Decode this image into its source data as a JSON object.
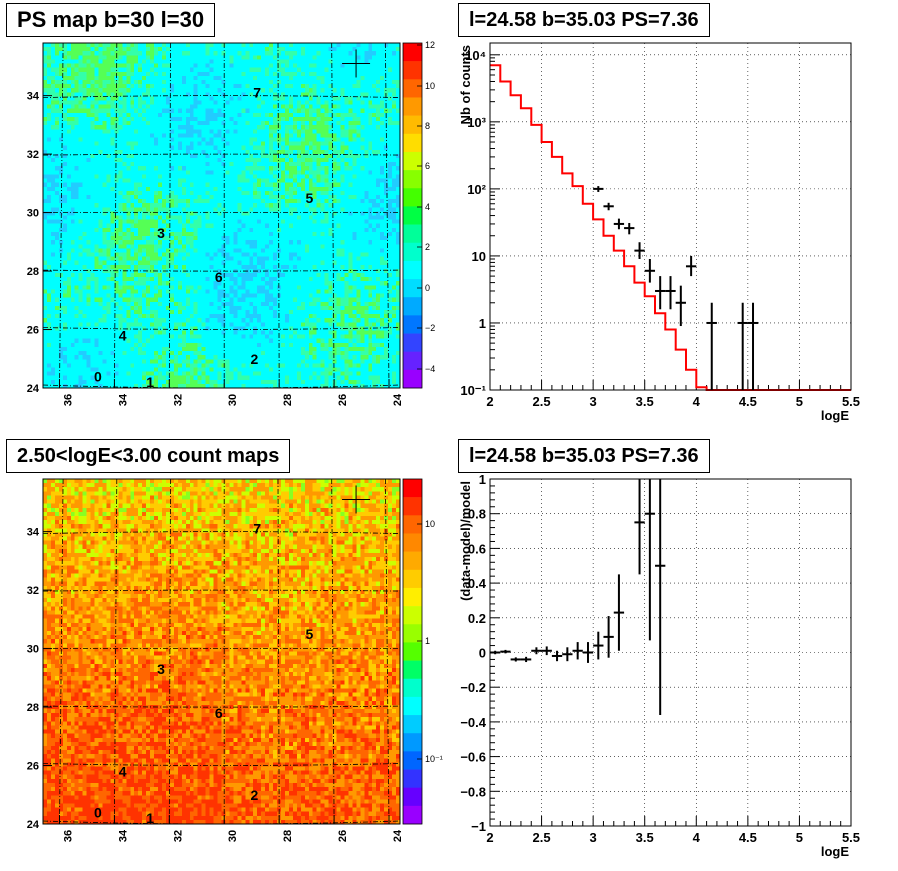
{
  "chart_data": [
    {
      "type": "heatmap",
      "title": "PS map b=30 l=30",
      "xlabel": "",
      "ylabel": "",
      "x_ticks": [
        "36",
        "34",
        "32",
        "30",
        "28",
        "26",
        "24"
      ],
      "y_ticks": [
        "24",
        "26",
        "28",
        "30",
        "32",
        "34"
      ],
      "xlim": [
        36.6,
        23.6
      ],
      "ylim": [
        24,
        35.8
      ],
      "colorbar": {
        "min": -5,
        "max": 12,
        "ticks": [
          "12",
          "10",
          "8",
          "6",
          "4",
          "2",
          "0",
          "−2",
          "−4"
        ]
      },
      "sources": [
        {
          "label": "0",
          "x": 34.6,
          "y": 24.4
        },
        {
          "label": "1",
          "x": 32.7,
          "y": 24.2
        },
        {
          "label": "2",
          "x": 28.9,
          "y": 25.0
        },
        {
          "label": "3",
          "x": 32.3,
          "y": 29.3
        },
        {
          "label": "4",
          "x": 33.7,
          "y": 25.8
        },
        {
          "label": "5",
          "x": 26.9,
          "y": 30.5
        },
        {
          "label": "6",
          "x": 30.2,
          "y": 27.8
        },
        {
          "label": "7",
          "x": 28.8,
          "y": 34.1
        }
      ],
      "marker": {
        "x": 25.2,
        "y": 35.1
      },
      "grid": true
    },
    {
      "type": "line",
      "title": "l=24.58 b=35.03 PS=7.36",
      "xlabel": "logE",
      "ylabel": "Nb of counts",
      "x_ticks": [
        "2",
        "2.5",
        "3",
        "3.5",
        "4",
        "4.5",
        "5",
        "5.5"
      ],
      "y_ticks": [
        "10⁻¹",
        "1",
        "10",
        "10²",
        "10³",
        "10⁴"
      ],
      "xlim": [
        2,
        5.5
      ],
      "ylim": [
        0.1,
        15000
      ],
      "log_y": true,
      "grid": true,
      "series": [
        {
          "type": "step",
          "color": "#ff0000",
          "bin_edges": [
            2.0,
            2.1,
            2.2,
            2.3,
            2.4,
            2.5,
            2.6,
            2.7,
            2.8,
            2.9,
            3.0,
            3.1,
            3.2,
            3.3,
            3.4,
            3.5,
            3.6,
            3.7,
            3.8,
            3.9,
            4.0,
            4.1,
            4.2,
            4.3,
            4.4,
            4.5,
            4.6,
            4.7,
            4.8,
            4.9,
            5.0,
            5.1,
            5.2,
            5.3,
            5.4,
            5.5
          ],
          "values": [
            7000,
            4000,
            2500,
            1600,
            900,
            500,
            300,
            170,
            110,
            60,
            35,
            20,
            12,
            7,
            4,
            2.5,
            1.4,
            0.8,
            0.4,
            0.2,
            0.11,
            0.1,
            0.1,
            0.1,
            0.1,
            0.1,
            0.1,
            0.1,
            0.1,
            0.1,
            0.1,
            0.1,
            0.1,
            0.1,
            0.1
          ]
        },
        {
          "type": "points",
          "color": "#000000",
          "points": [
            {
              "x": 3.05,
              "y": 100,
              "lo": 90,
              "hi": 110
            },
            {
              "x": 3.15,
              "y": 55,
              "lo": 48,
              "hi": 62
            },
            {
              "x": 3.25,
              "y": 30,
              "lo": 25,
              "hi": 36
            },
            {
              "x": 3.35,
              "y": 26,
              "lo": 21,
              "hi": 31
            },
            {
              "x": 3.45,
              "y": 12,
              "lo": 9,
              "hi": 16
            },
            {
              "x": 3.55,
              "y": 6,
              "lo": 4,
              "hi": 9
            },
            {
              "x": 3.65,
              "y": 3,
              "lo": 1.6,
              "hi": 5
            },
            {
              "x": 3.75,
              "y": 3,
              "lo": 1.6,
              "hi": 5
            },
            {
              "x": 3.85,
              "y": 2,
              "lo": 0.9,
              "hi": 3.6
            },
            {
              "x": 3.95,
              "y": 7,
              "lo": 5,
              "hi": 10
            },
            {
              "x": 4.15,
              "y": 1,
              "lo": 0.1,
              "hi": 2
            },
            {
              "x": 4.45,
              "y": 1,
              "lo": 0.1,
              "hi": 2
            },
            {
              "x": 4.55,
              "y": 1,
              "lo": 0.1,
              "hi": 2
            }
          ]
        }
      ]
    },
    {
      "type": "heatmap",
      "title": "2.50<logE<3.00 count maps",
      "xlabel": "",
      "ylabel": "",
      "x_ticks": [
        "36",
        "34",
        "32",
        "30",
        "28",
        "26",
        "24"
      ],
      "y_ticks": [
        "24",
        "26",
        "28",
        "30",
        "32",
        "34"
      ],
      "xlim": [
        36.6,
        23.6
      ],
      "ylim": [
        24,
        35.8
      ],
      "colorbar": {
        "log": true,
        "ticks": [
          "10",
          "1",
          "10⁻¹"
        ]
      },
      "sources": [
        {
          "label": "0",
          "x": 34.6,
          "y": 24.4
        },
        {
          "label": "1",
          "x": 32.7,
          "y": 24.2
        },
        {
          "label": "2",
          "x": 28.9,
          "y": 25.0
        },
        {
          "label": "3",
          "x": 32.3,
          "y": 29.3
        },
        {
          "label": "4",
          "x": 33.7,
          "y": 25.8
        },
        {
          "label": "5",
          "x": 26.9,
          "y": 30.5
        },
        {
          "label": "6",
          "x": 30.2,
          "y": 27.8
        },
        {
          "label": "7",
          "x": 28.8,
          "y": 34.1
        }
      ],
      "marker": {
        "x": 25.2,
        "y": 35.1
      },
      "grid": true
    },
    {
      "type": "scatter",
      "title": "l=24.58 b=35.03 PS=7.36",
      "xlabel": "logE",
      "ylabel": "(data-model)/model",
      "x_ticks": [
        "2",
        "2.5",
        "3",
        "3.5",
        "4",
        "4.5",
        "5",
        "5.5"
      ],
      "y_ticks": [
        "−1",
        "−0.8",
        "−0.6",
        "−0.4",
        "−0.2",
        "0",
        "0.2",
        "0.4",
        "0.6",
        "0.8",
        "1"
      ],
      "xlim": [
        2,
        5.5
      ],
      "ylim": [
        -1,
        1
      ],
      "grid": true,
      "series": [
        {
          "color": "#000000",
          "points": [
            {
              "x": 2.05,
              "y": 0.0,
              "err": 0.01
            },
            {
              "x": 2.15,
              "y": 0.005,
              "err": 0.01
            },
            {
              "x": 2.25,
              "y": -0.04,
              "err": 0.012
            },
            {
              "x": 2.35,
              "y": -0.04,
              "err": 0.015
            },
            {
              "x": 2.45,
              "y": 0.01,
              "err": 0.02
            },
            {
              "x": 2.55,
              "y": 0.01,
              "err": 0.025
            },
            {
              "x": 2.65,
              "y": -0.02,
              "err": 0.03
            },
            {
              "x": 2.75,
              "y": -0.01,
              "err": 0.04
            },
            {
              "x": 2.85,
              "y": 0.01,
              "err": 0.05
            },
            {
              "x": 2.95,
              "y": 0.0,
              "err": 0.06
            },
            {
              "x": 3.05,
              "y": 0.04,
              "err": 0.08
            },
            {
              "x": 3.15,
              "y": 0.09,
              "err": 0.12
            },
            {
              "x": 3.25,
              "y": 0.23,
              "err": 0.22
            },
            {
              "x": 3.45,
              "y": 0.75,
              "err": 0.3
            },
            {
              "x": 3.55,
              "y": 0.8,
              "err": 0.73
            },
            {
              "x": 3.65,
              "y": 0.5,
              "err": 0.86
            }
          ]
        }
      ]
    }
  ]
}
